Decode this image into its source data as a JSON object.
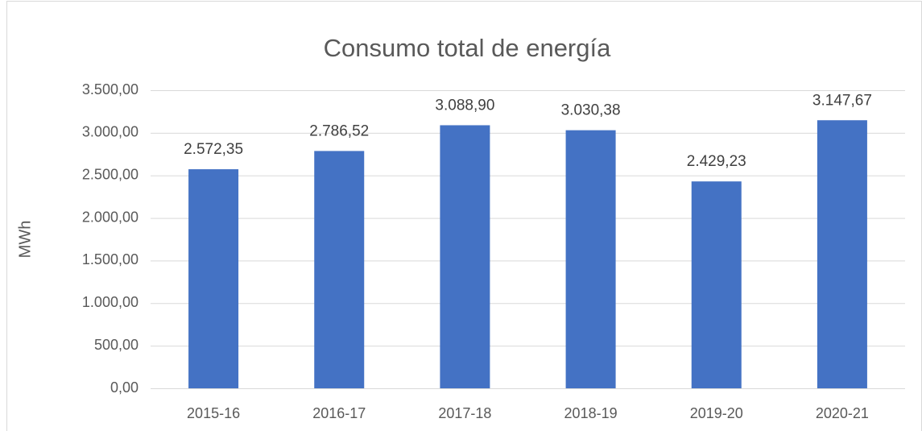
{
  "chart_data": {
    "type": "bar",
    "title": "Consumo total de energía",
    "y_label": "MWh",
    "categories": [
      "2015-16",
      "2016-17",
      "2017-18",
      "2018-19",
      "2019-20",
      "2020-21"
    ],
    "values": [
      2572.35,
      2786.52,
      3088.9,
      3030.38,
      2429.23,
      3147.67
    ],
    "value_labels": [
      "2.572,35",
      "2.786,52",
      "3.088,90",
      "3.030,38",
      "2.429,23",
      "3.147,67"
    ],
    "color": "#4472c4",
    "ylim": [
      0,
      3500
    ],
    "yticks": [
      {
        "value": 0,
        "label": "0,00"
      },
      {
        "value": 500,
        "label": "500,00"
      },
      {
        "value": 1000,
        "label": "1.000,00"
      },
      {
        "value": 1500,
        "label": "1.500,00"
      },
      {
        "value": 2000,
        "label": "2.000,00"
      },
      {
        "value": 2500,
        "label": "2.500,00"
      },
      {
        "value": 3000,
        "label": "3.000,00"
      },
      {
        "value": 3500,
        "label": "3.500,00"
      }
    ],
    "grid": true
  }
}
